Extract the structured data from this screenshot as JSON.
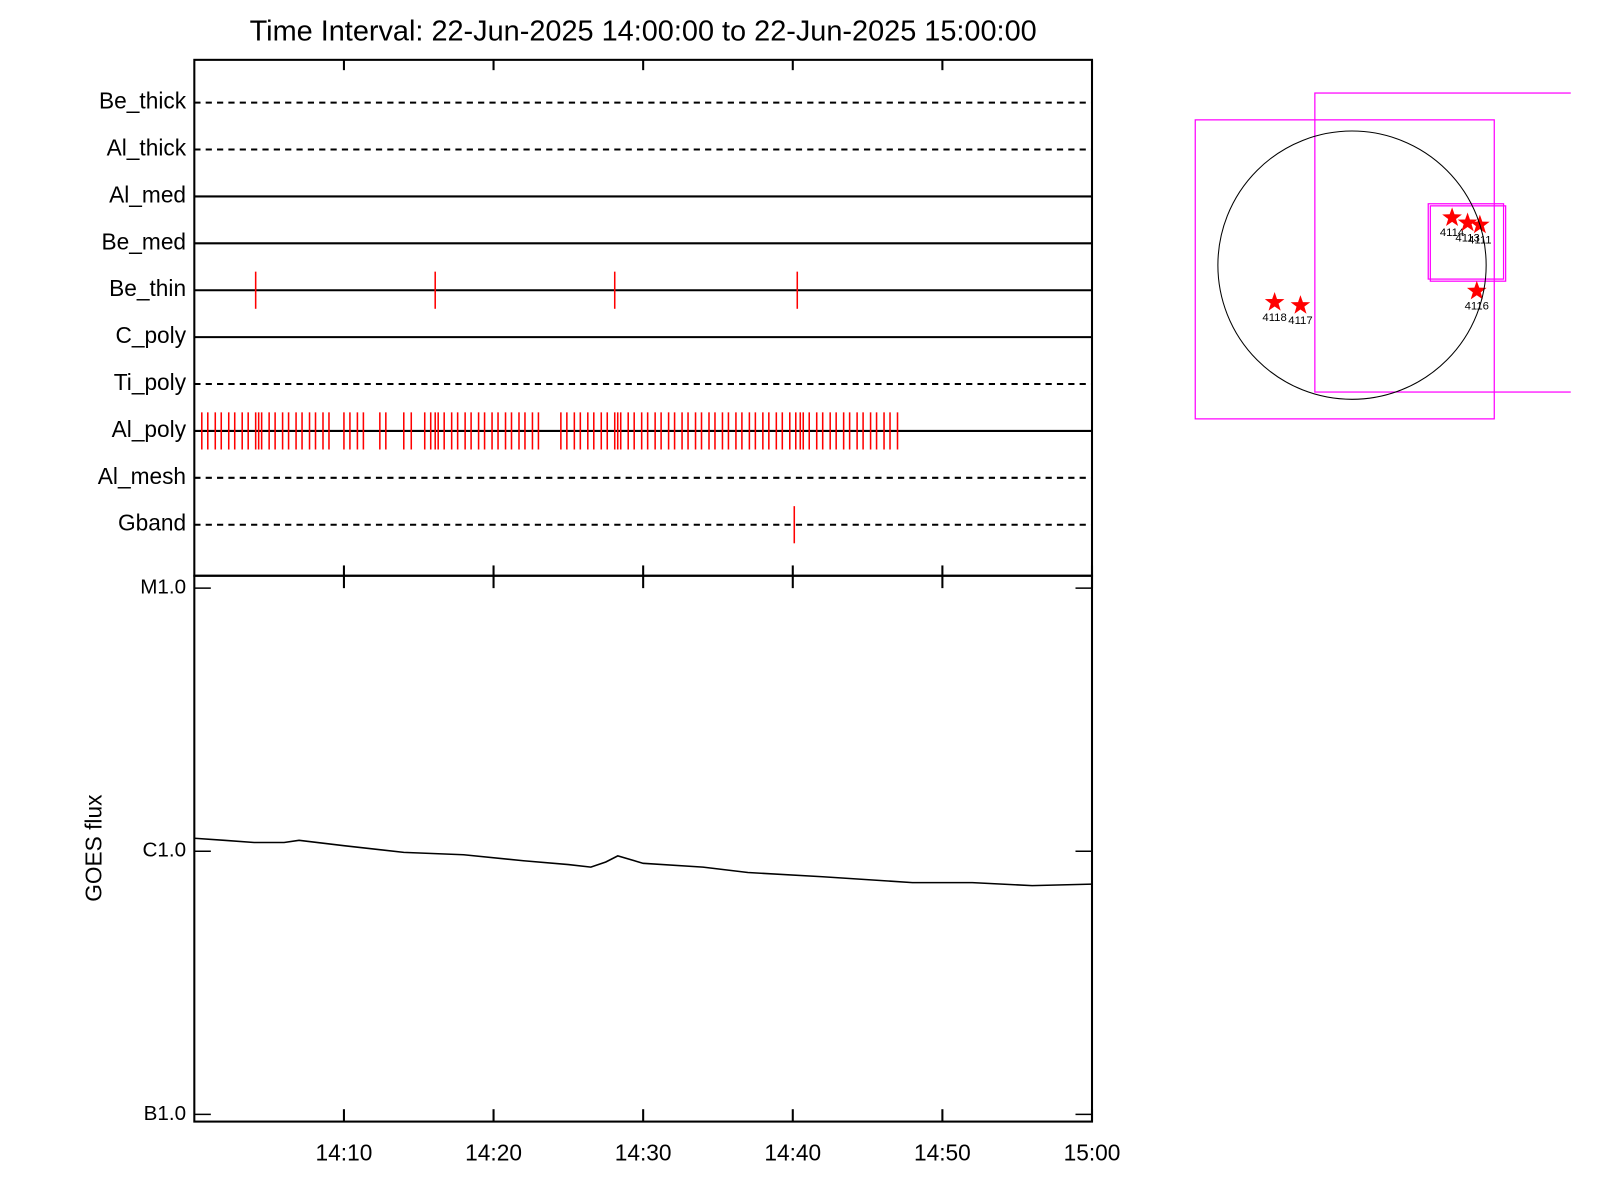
{
  "chart_data": [
    {
      "type": "eventlines",
      "title": "Time Interval: 22-Jun-2025 14:00:00 to 22-Jun-2025 15:00:00",
      "xlim": [
        0,
        60
      ],
      "xticks": [
        {
          "value": 10,
          "label": "14:10"
        },
        {
          "value": 20,
          "label": "14:20"
        },
        {
          "value": 30,
          "label": "14:30"
        },
        {
          "value": 40,
          "label": "14:40"
        },
        {
          "value": 50,
          "label": "14:50"
        },
        {
          "value": 60,
          "label": "15:00"
        }
      ],
      "event_color": "#ff0000",
      "series": [
        {
          "name": "Be_thick",
          "style": "dashed",
          "values": []
        },
        {
          "name": "Al_thick",
          "style": "dashed",
          "values": []
        },
        {
          "name": "Al_med",
          "style": "solid",
          "values": []
        },
        {
          "name": "Be_med",
          "style": "solid",
          "values": []
        },
        {
          "name": "Be_thin",
          "style": "solid",
          "values": [
            4.1,
            16.1,
            28.1,
            40.3
          ]
        },
        {
          "name": "C_poly",
          "style": "solid",
          "values": []
        },
        {
          "name": "Ti_poly",
          "style": "dashed",
          "values": []
        },
        {
          "name": "Al_poly",
          "style": "solid",
          "values": [
            0.5,
            0.9,
            1.4,
            1.8,
            2.3,
            2.7,
            3.2,
            3.6,
            4.1,
            4.3,
            4.5,
            5.0,
            5.4,
            5.9,
            6.3,
            6.8,
            7.2,
            7.7,
            8.1,
            8.6,
            9.0,
            10.0,
            10.4,
            10.9,
            11.3,
            12.4,
            12.8,
            14.0,
            14.5,
            15.4,
            15.8,
            16.1,
            16.3,
            16.7,
            17.2,
            17.6,
            18.1,
            18.5,
            19.0,
            19.4,
            19.9,
            20.3,
            20.8,
            21.2,
            21.7,
            22.1,
            22.6,
            23.0,
            24.5,
            24.9,
            25.4,
            25.8,
            26.3,
            26.7,
            27.2,
            27.6,
            28.1,
            28.3,
            28.5,
            29.0,
            29.4,
            29.9,
            30.3,
            30.8,
            31.2,
            31.7,
            32.1,
            32.6,
            33.0,
            33.5,
            33.9,
            34.4,
            34.8,
            35.3,
            35.7,
            36.2,
            36.6,
            37.1,
            37.5,
            38.0,
            38.4,
            38.9,
            39.3,
            39.8,
            40.2,
            40.5,
            40.7,
            41.1,
            41.6,
            42.0,
            42.5,
            42.9,
            43.4,
            43.8,
            44.3,
            44.7,
            45.2,
            45.6,
            46.1,
            46.5,
            47.0
          ]
        },
        {
          "name": "Al_mesh",
          "style": "dashed",
          "values": []
        },
        {
          "name": "Gband",
          "style": "dashed",
          "values": [
            40.1
          ]
        }
      ]
    },
    {
      "type": "line",
      "y_label": "GOES flux",
      "log_y": true,
      "xlim": [
        0,
        60
      ],
      "xticks": [
        {
          "value": 10,
          "label": "14:10"
        },
        {
          "value": 20,
          "label": "14:20"
        },
        {
          "value": 30,
          "label": "14:30"
        },
        {
          "value": 40,
          "label": "14:40"
        },
        {
          "value": 50,
          "label": "14:50"
        },
        {
          "value": 60,
          "label": "15:00"
        }
      ],
      "ylim": [
        1e-07,
        1e-05
      ],
      "yticks": [
        {
          "value": 1e-05,
          "label": "M1.0"
        },
        {
          "value": 1e-06,
          "label": "C1.0"
        },
        {
          "value": 1e-07,
          "label": "B1.0"
        }
      ],
      "color": "#000000",
      "x": [
        0,
        2,
        4,
        6,
        7,
        10,
        14,
        18,
        22,
        25,
        26.5,
        27.5,
        28.3,
        30,
        34,
        37,
        42,
        48,
        52,
        56,
        60
      ],
      "values": [
        1.12e-06,
        1.1e-06,
        1.08e-06,
        1.08e-06,
        1.1e-06,
        1.05e-06,
        9.9e-07,
        9.7e-07,
        9.2e-07,
        8.9e-07,
        8.7e-07,
        9.1e-07,
        9.6e-07,
        9e-07,
        8.7e-07,
        8.3e-07,
        8e-07,
        7.6e-07,
        7.6e-07,
        7.4e-07,
        7.5e-07
      ]
    },
    {
      "type": "solar_map",
      "solar_radius": 960,
      "region_color": "#ff0000",
      "fov_color": "#ff00ff",
      "regions": [
        {
          "label": "4114",
          "x": 716,
          "y": 340
        },
        {
          "label": "4113",
          "x": 827,
          "y": 303
        },
        {
          "label": "4111",
          "x": 915,
          "y": 288
        },
        {
          "label": "4116",
          "x": 893,
          "y": -185
        },
        {
          "label": "4118",
          "x": -554,
          "y": -266
        },
        {
          "label": "4117",
          "x": -369,
          "y": -288
        }
      ],
      "fovs": [
        {
          "x": -52,
          "y": -30,
          "size": 2140
        },
        {
          "x": 804,
          "y": 162,
          "size": 2140
        },
        {
          "x": 815,
          "y": 170,
          "size": 539
        },
        {
          "x": 830,
          "y": 155,
          "size": 539
        }
      ]
    }
  ]
}
